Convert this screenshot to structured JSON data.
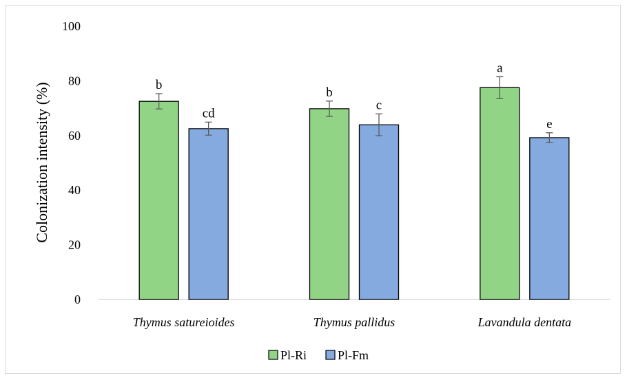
{
  "chart_data": {
    "type": "bar",
    "categories": [
      "Thymus satureioides",
      "Thymus pallidus",
      "Lavandula dentata"
    ],
    "ylabel": "Colonization intensity (%)",
    "xlabel": "",
    "ylim": [
      0,
      100
    ],
    "yticks": [
      0,
      20,
      40,
      60,
      80,
      100
    ],
    "grid": false,
    "legend_position": "bottom",
    "series": [
      {
        "name": "Pl-Ri",
        "color": "#92d486",
        "values": [
          72.5,
          69.8,
          77.5
        ],
        "errors": [
          2.8,
          2.8,
          4.0
        ],
        "letters": [
          "b",
          "b",
          "a"
        ]
      },
      {
        "name": "Pl-Fm",
        "color": "#84aadf",
        "values": [
          62.5,
          63.9,
          59.2
        ],
        "errors": [
          2.4,
          4.0,
          1.8
        ],
        "letters": [
          "cd",
          "c",
          "e"
        ]
      }
    ]
  }
}
